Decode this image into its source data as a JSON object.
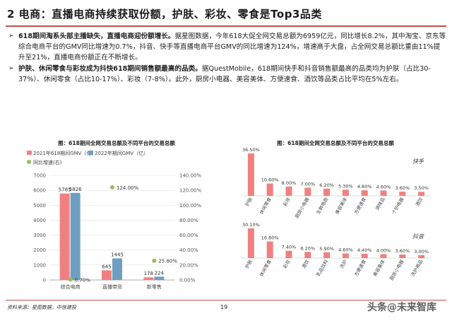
{
  "page": {
    "title": "2 电商：直播电商持续获取份额，护肤、彩妆、零食是Top3品类",
    "bullets": [
      {
        "bold": "618期间淘系头部主播缺失，直播电商迎份额增长。",
        "text": "据星图数据，今年618大促全网交易总额为6959亿元，同比增长8.2%，其中淘宝、京东等综合电商平台的GMV同比增速为0.7%，抖音、快手等直播电商平台GMV的同比增速为124%，增速高于大盘，占全网交易总额比重由11%提升至21%，直播电商份额正在不断增长。"
      },
      {
        "bold": "护肤、休闲零食与彩妆成为抖快618期间销售额最高的品类。",
        "text": "据QuestMobile，618期间快手和抖音销售额最高的品类均为护肤（占比30-37%）、休闲零食（占比10-17%）、彩妆（7-8%）。此外，厨房小电器、美容美体、方便速食、酒饮等品类占比平均在5%左右。"
      }
    ],
    "source": "资料来源：星图数据，中信建投",
    "page_number": "19",
    "watermark": "头条@未来智库",
    "bullet_mark": "➢"
  },
  "chart_data": [
    {
      "type": "bar",
      "title": "图：618期间全网交易总额及不同平台的交易总额",
      "categories": [
        "综合电商",
        "直播带货",
        "新零售"
      ],
      "series": [
        {
          "name": "2021年618期间GMV（亿）",
          "values": [
            5785,
            645,
            178
          ],
          "color": "#f08080"
        },
        {
          "name": "2022年期间GMV（亿）",
          "values": [
            5826,
            1445,
            224
          ],
          "color": "#6f9fc0"
        },
        {
          "name": "同比增速(右)",
          "values": [
            0.7,
            124.0,
            25.8
          ],
          "color": "#9bbb59",
          "axis": "right",
          "labels": [
            "0.70%",
            "124.00%",
            "25.80%"
          ]
        }
      ],
      "ylim": [
        0,
        7000
      ],
      "yticks": [
        "0",
        "1000",
        "2000",
        "3000",
        "4000",
        "5000",
        "6000",
        "7000"
      ],
      "y2lim": [
        0,
        140
      ],
      "y2ticks": [
        "0.00%",
        "20.00%",
        "40.00%",
        "60.00%",
        "80.00%",
        "100.00%",
        "120.00%",
        "140.00%"
      ],
      "legend": "top-left"
    },
    {
      "type": "bar",
      "title": "图：618期间全网交易总额及不同平台的交易总额",
      "series": [
        {
          "name": "快手",
          "categories": [
            "护肤",
            "休闲零食",
            "彩妆",
            "厨房小电器",
            "生鲜电商",
            "美容美体",
            "方便速食",
            "调味品",
            "个护电器",
            "酒饮"
          ],
          "values": [
            36.5,
            10.6,
            8.0,
            7.0,
            6.2,
            5.3,
            4.8,
            4.6,
            3.6,
            3.5
          ],
          "labels": [
            "36.50%",
            "10.60%",
            "8.00%",
            "7.00%",
            "6.20%",
            "5.30%",
            "4.80%",
            "4.60%",
            "3.60%",
            "3.50%"
          ]
        },
        {
          "name": "抖音",
          "categories": [
            "护肤",
            "休闲零食",
            "彩妆",
            "酒饮",
            "乳品饮料",
            "洗护",
            "方便速食",
            "美容美体",
            "厨房小电器",
            "洗护用品"
          ],
          "values": [
            30.1,
            16.8,
            7.4,
            6.2,
            5.9,
            4.6,
            4.4,
            4.0,
            3.6,
            3.0
          ],
          "labels": [
            "30.10%",
            "16.80%",
            "7.40%",
            "6.20%",
            "5.90%",
            "4.60%",
            "4.40%",
            "4.00%",
            "3.60%",
            "3.00%"
          ]
        }
      ],
      "color": "#f08080"
    }
  ]
}
